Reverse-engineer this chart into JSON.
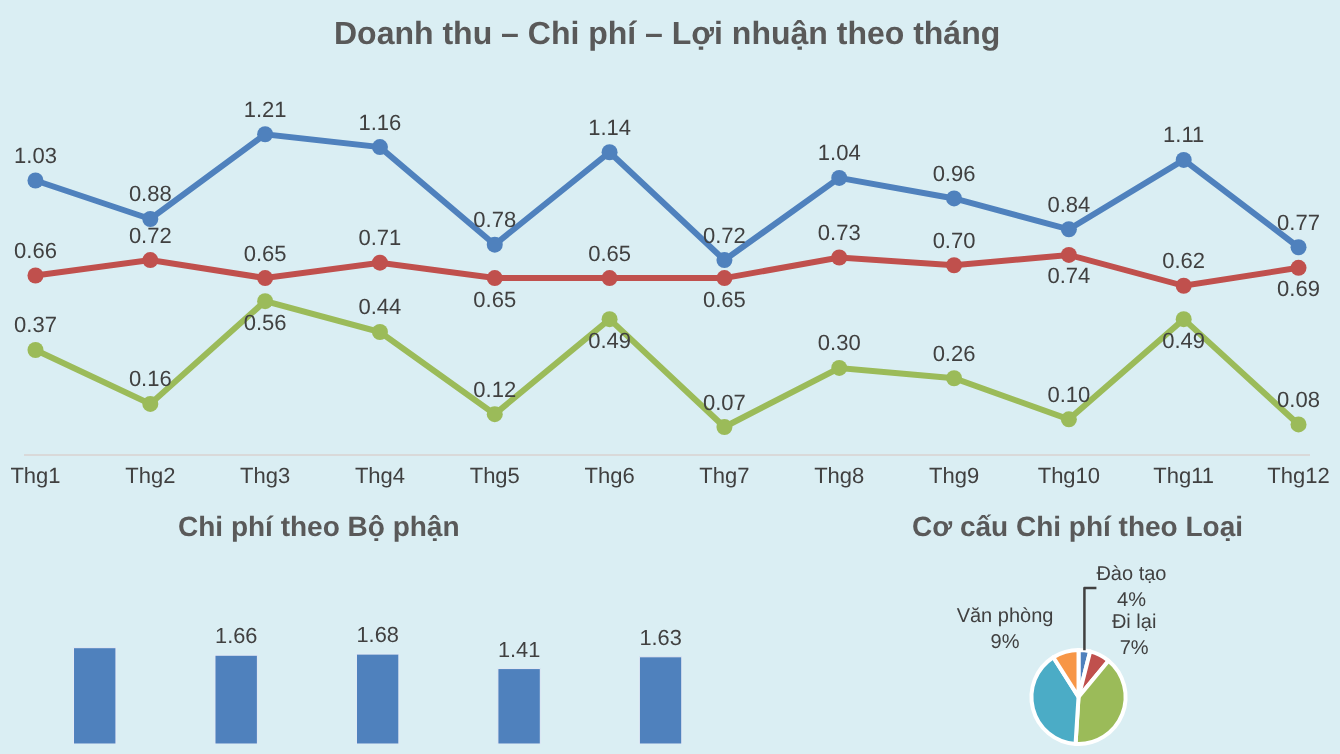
{
  "chart_data": [
    {
      "type": "line",
      "title": "Doanh thu – Chi phí – Lợi nhuận theo tháng",
      "categories": [
        "Thg1",
        "Thg2",
        "Thg3",
        "Thg4",
        "Thg5",
        "Thg6",
        "Thg7",
        "Thg8",
        "Thg9",
        "Thg10",
        "Thg11",
        "Thg12"
      ],
      "series": [
        {
          "color": "#4f81bd",
          "values": [
            1.03,
            0.88,
            1.21,
            1.16,
            0.78,
            1.14,
            0.72,
            1.04,
            0.96,
            0.84,
            1.11,
            0.77
          ],
          "value_labels": [
            "1.03",
            "0.88",
            "1.21",
            "1.16",
            "0.78",
            "1.14",
            "0.72",
            "1.04",
            "0.96",
            "0.84",
            "1.11",
            "0.77"
          ]
        },
        {
          "color": "#c0504d",
          "values": [
            0.66,
            0.72,
            0.65,
            0.71,
            0.65,
            0.65,
            0.65,
            0.73,
            0.7,
            0.74,
            0.62,
            0.69
          ],
          "value_labels": [
            "0.66",
            "0.72",
            "0.65",
            "0.71",
            "0.65",
            "0.65",
            "0.65",
            "0.73",
            "0.70",
            "0.74",
            "0.62",
            "0.69"
          ]
        },
        {
          "color": "#9bbb59",
          "values": [
            0.37,
            0.16,
            0.56,
            0.44,
            0.12,
            0.49,
            0.07,
            0.3,
            0.26,
            0.1,
            0.49,
            0.08
          ],
          "value_labels": [
            "0.37",
            "0.16",
            "0.56",
            "0.44",
            "0.12",
            "0.49",
            "0.07",
            "0.30",
            "0.26",
            "0.10",
            "0.49",
            "0.08"
          ]
        }
      ],
      "marker": "circle",
      "grid": false,
      "tick_labels": "x"
    },
    {
      "type": "bar",
      "title": "Chi phí theo Bộ phận",
      "categories": [
        null,
        null,
        null,
        null,
        null
      ],
      "color": "#4f81bd",
      "values": [
        1.8,
        1.66,
        1.68,
        1.41,
        1.63
      ],
      "value_labels": [
        null,
        "1.66",
        "1.68",
        "1.41",
        "1.63"
      ],
      "tick_labels": false
    },
    {
      "type": "pie",
      "title": "Cơ cấu Chi phí theo Loại",
      "categories": [
        "Đào tạo",
        "Đi lại",
        null,
        null,
        "Văn phòng"
      ],
      "values": [
        4,
        7,
        40,
        40,
        9
      ],
      "colors": [
        "#4f81bd",
        "#c0504d",
        "#9bbb59",
        "#4bacc6",
        "#f79646"
      ],
      "value_labels": [
        "4%",
        "7%",
        null,
        null,
        "9%"
      ]
    }
  ]
}
